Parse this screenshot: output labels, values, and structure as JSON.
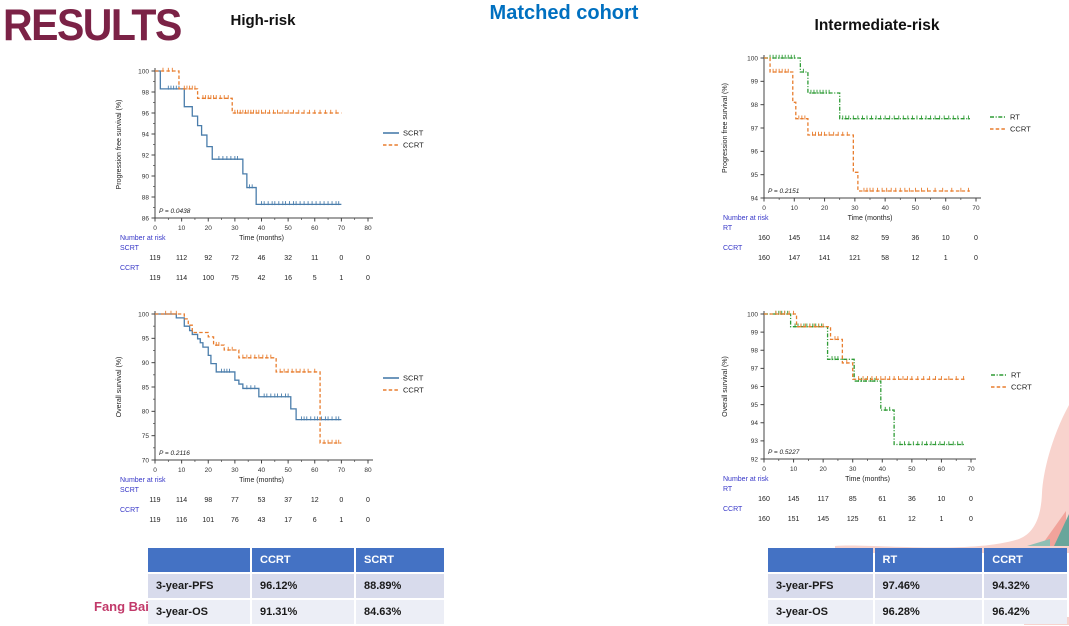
{
  "page": {
    "title": "RESULTS",
    "left_group_header": "High-risk",
    "center_header": "Matched cohort",
    "right_group_header": "Intermediate-risk",
    "author": "Fang Bai"
  },
  "colors": {
    "results_title": "#7b2246",
    "center_header": "#0070c0",
    "scrt": "#4a7dab",
    "ccrt": "#e87d2e",
    "rt": "#2e9b35",
    "risk_label_blue": "#3737c8",
    "axis": "#444444",
    "tick_text": "#333333",
    "table_header_bg": "#4472c4",
    "table_row_odd": "#d8dbec",
    "table_row_even": "#eceef6",
    "author_pink": "#c23a6a",
    "decor_pink_light": "#f8d3cd",
    "decor_pink_dark": "#f1a39b",
    "decor_teal": "#68a69b",
    "decor_teal_light": "#8fbfb4"
  },
  "chart_data": [
    {
      "type": "line",
      "id": "high-risk-pfs",
      "group": "High-risk",
      "outcome": "PFS",
      "ylabel": "Progression free survival (%)",
      "xlabel": "Time (months)",
      "ylim": [
        86,
        100
      ],
      "yticks": [
        86,
        88,
        90,
        92,
        94,
        96,
        98,
        100
      ],
      "yminor": 1,
      "xlim": [
        0,
        80
      ],
      "xticks": [
        0,
        10,
        20,
        30,
        40,
        50,
        60,
        70,
        80
      ],
      "xminor": 5,
      "pvalue": "P = 0.0438",
      "legend_position": "right",
      "grid": false,
      "series": [
        {
          "name": "SCRT",
          "color_key": "scrt",
          "dash": "solid",
          "steps": [
            [
              0,
              100
            ],
            [
              2,
              98.3
            ],
            [
              11,
              96.6
            ],
            [
              14,
              95.7
            ],
            [
              16,
              94.8
            ],
            [
              17.5,
              93.9
            ],
            [
              19.5,
              92.8
            ],
            [
              21.5,
              91.6
            ],
            [
              33,
              90.2
            ],
            [
              34.5,
              88.9
            ],
            [
              38,
              87.3
            ],
            [
              70,
              87.3
            ]
          ],
          "censors": [
            5,
            6,
            7,
            8,
            9,
            24,
            25.5,
            27,
            28.5,
            30,
            31,
            35.5,
            36.5,
            40,
            41,
            42.5,
            44,
            45,
            46.5,
            48,
            49,
            50.5,
            52,
            53,
            54.5,
            56,
            57.5,
            59,
            60.5,
            62,
            63.5,
            65,
            66.5,
            68,
            69
          ]
        },
        {
          "name": "CCRT",
          "color_key": "ccrt",
          "dash": "dashed",
          "steps": [
            [
              0,
              100
            ],
            [
              9,
              98.3
            ],
            [
              16,
              97.4
            ],
            [
              29,
              96
            ],
            [
              70,
              96
            ]
          ],
          "censors": [
            3,
            5,
            6.5,
            11,
            12,
            13,
            14,
            15,
            18,
            19,
            20,
            21,
            22,
            23,
            24.5,
            26,
            27.5,
            30,
            31,
            32,
            33,
            34,
            35,
            36,
            37,
            38,
            39,
            40,
            41.5,
            43,
            44.5,
            46,
            48,
            50,
            52,
            54,
            56,
            58,
            60,
            62,
            64,
            66,
            68
          ]
        }
      ],
      "number_at_risk": {
        "label": "Number at risk",
        "rows": [
          {
            "name": "SCRT",
            "values": [
              119,
              112,
              92,
              72,
              46,
              32,
              11,
              0,
              0
            ]
          },
          {
            "name": "CCRT",
            "values": [
              119,
              114,
              100,
              75,
              42,
              16,
              5,
              1,
              0
            ]
          }
        ]
      }
    },
    {
      "type": "line",
      "id": "high-risk-os",
      "group": "High-risk",
      "outcome": "OS",
      "ylabel": "Overall survival (%)",
      "xlabel": "Time (months)",
      "ylim": [
        70,
        100
      ],
      "yticks": [
        70,
        75,
        80,
        85,
        90,
        95,
        100
      ],
      "yminor": 2.5,
      "xlim": [
        0,
        80
      ],
      "xticks": [
        0,
        10,
        20,
        30,
        40,
        50,
        60,
        70,
        80
      ],
      "xminor": 5,
      "pvalue": "P = 0.2116",
      "legend_position": "right",
      "grid": false,
      "series": [
        {
          "name": "SCRT",
          "color_key": "scrt",
          "dash": "solid",
          "steps": [
            [
              0,
              100
            ],
            [
              8,
              99.2
            ],
            [
              11,
              97.5
            ],
            [
              13,
              96.6
            ],
            [
              14,
              95.8
            ],
            [
              16,
              94.9
            ],
            [
              17,
              94.1
            ],
            [
              18,
              93.2
            ],
            [
              20,
              91.5
            ],
            [
              21,
              89.8
            ],
            [
              23,
              88.1
            ],
            [
              30,
              86.4
            ],
            [
              31.5,
              85.6
            ],
            [
              33,
              84.7
            ],
            [
              39,
              83
            ],
            [
              51,
              80.5
            ],
            [
              53,
              78.3
            ],
            [
              70,
              78.3
            ]
          ],
          "censors": [
            25,
            26,
            27,
            28,
            34.5,
            36,
            37.5,
            41,
            42,
            43.5,
            45,
            46,
            47.5,
            49,
            50,
            55,
            56,
            57,
            58.5,
            60,
            61,
            62.5,
            64,
            65,
            66.5,
            68,
            69
          ]
        },
        {
          "name": "CCRT",
          "color_key": "ccrt",
          "dash": "dashed",
          "steps": [
            [
              0,
              100
            ],
            [
              11,
              99
            ],
            [
              12.5,
              97.7
            ],
            [
              14,
              96.2
            ],
            [
              20,
              95.3
            ],
            [
              22,
              93.6
            ],
            [
              26,
              92.6
            ],
            [
              31.5,
              91
            ],
            [
              45.5,
              88.1
            ],
            [
              62,
              73.5
            ],
            [
              70,
              73.5
            ]
          ],
          "censors": [
            4,
            6,
            8,
            23,
            24,
            27.5,
            29,
            33,
            34.5,
            36,
            37.5,
            39,
            40.5,
            42,
            43.5,
            47,
            48.5,
            50,
            51.5,
            53,
            54.5,
            56,
            57.5,
            60,
            63.5,
            65,
            66.5,
            68,
            69
          ]
        }
      ],
      "number_at_risk": {
        "label": "Number at risk",
        "rows": [
          {
            "name": "SCRT",
            "values": [
              119,
              114,
              98,
              77,
              53,
              37,
              12,
              0,
              0
            ]
          },
          {
            "name": "CCRT",
            "values": [
              119,
              116,
              101,
              76,
              43,
              17,
              6,
              1,
              0
            ]
          }
        ]
      }
    },
    {
      "type": "line",
      "id": "intermediate-risk-pfs",
      "group": "Intermediate-risk",
      "outcome": "PFS",
      "ylabel": "Progression free survival (%)",
      "xlabel": "Time (months)",
      "ylim": [
        94,
        100
      ],
      "yticks": [
        94,
        95,
        96,
        97,
        98,
        99,
        100
      ],
      "yminor": null,
      "xlim": [
        0,
        70
      ],
      "xticks": [
        0,
        10,
        20,
        30,
        40,
        50,
        60,
        70
      ],
      "xminor": 5,
      "pvalue": "P = 0.2151",
      "legend_position": "right",
      "grid": false,
      "series": [
        {
          "name": "RT",
          "color_key": "rt",
          "dash": "dashdot",
          "steps": [
            [
              0,
              100
            ],
            [
              12,
              99.4
            ],
            [
              14.5,
              98.5
            ],
            [
              25,
              97.4
            ],
            [
              68,
              97.4
            ]
          ],
          "censors": [
            2,
            3,
            4,
            5,
            6,
            7,
            8,
            9,
            10,
            13,
            15.5,
            16.5,
            17.5,
            18.5,
            19.5,
            20.5,
            21.5,
            26,
            27,
            28,
            29.5,
            31,
            32.5,
            34,
            35.5,
            37,
            38.5,
            40,
            41.5,
            43,
            44.5,
            46,
            47.5,
            49,
            50.5,
            52,
            53.5,
            55,
            56.5,
            58,
            59.5,
            61,
            62.5,
            64,
            66,
            67.5
          ]
        },
        {
          "name": "CCRT",
          "color_key": "ccrt",
          "dash": "dashed",
          "steps": [
            [
              0,
              100
            ],
            [
              2,
              99.4
            ],
            [
              9.5,
              98.1
            ],
            [
              10.5,
              97.4
            ],
            [
              14.5,
              96.7
            ],
            [
              29.5,
              95.1
            ],
            [
              31,
              94.3
            ],
            [
              68,
              94.3
            ]
          ],
          "censors": [
            3,
            4,
            5,
            6,
            7,
            8,
            11.5,
            12.5,
            13.5,
            16,
            17,
            18,
            19,
            20,
            21.5,
            23,
            24.5,
            26,
            27.5,
            33,
            34,
            35,
            36,
            37.5,
            39,
            40.5,
            42,
            43.5,
            45,
            46.5,
            48,
            50,
            52,
            54,
            56.5,
            59,
            62,
            65,
            67.5
          ]
        }
      ],
      "number_at_risk": {
        "label": "Number at risk",
        "rows": [
          {
            "name": "RT",
            "values": [
              160,
              145,
              114,
              82,
              59,
              36,
              10,
              0
            ]
          },
          {
            "name": "CCRT",
            "values": [
              160,
              147,
              141,
              121,
              58,
              12,
              1,
              0
            ]
          }
        ]
      }
    },
    {
      "type": "line",
      "id": "intermediate-risk-os",
      "group": "Intermediate-risk",
      "outcome": "OS",
      "ylabel": "Overall survival (%)",
      "xlabel": "Time (months)",
      "ylim": [
        92,
        100
      ],
      "yticks": [
        92,
        93,
        94,
        95,
        96,
        97,
        98,
        99,
        100
      ],
      "yminor": null,
      "xlim": [
        0,
        70
      ],
      "xticks": [
        0,
        10,
        20,
        30,
        40,
        50,
        60,
        70
      ],
      "xminor": 5,
      "pvalue": "P = 0.5227",
      "legend_position": "right",
      "grid": false,
      "series": [
        {
          "name": "RT",
          "color_key": "rt",
          "dash": "dashdot",
          "steps": [
            [
              0,
              100
            ],
            [
              9,
              99.3
            ],
            [
              21.5,
              97.5
            ],
            [
              30.5,
              96.3
            ],
            [
              39.5,
              94.7
            ],
            [
              44,
              92.8
            ],
            [
              68,
              92.8
            ]
          ],
          "censors": [
            4,
            5,
            6,
            7,
            8,
            10.5,
            11.5,
            12.5,
            13.5,
            14.5,
            15.5,
            16.5,
            17.5,
            18.5,
            19.5,
            23,
            24,
            25,
            26.5,
            32,
            33,
            34.5,
            36,
            37.5,
            41,
            42.5,
            46,
            47.5,
            49,
            50.5,
            52,
            53.5,
            55,
            56.5,
            58,
            59.5,
            61,
            62.5,
            64,
            65.5,
            67
          ]
        },
        {
          "name": "CCRT",
          "color_key": "ccrt",
          "dash": "dashed",
          "steps": [
            [
              0,
              100
            ],
            [
              11,
              99.3
            ],
            [
              22.5,
              98.6
            ],
            [
              26.5,
              97.3
            ],
            [
              30,
              96.4
            ],
            [
              68,
              96.4
            ]
          ],
          "censors": [
            4,
            5.5,
            7,
            8.5,
            10,
            12.5,
            14,
            15.5,
            17,
            18.5,
            20,
            24,
            25,
            28,
            32,
            33.5,
            35,
            36.5,
            38,
            39.5,
            41,
            42.5,
            44,
            45.5,
            47,
            48.5,
            50,
            52,
            54,
            56,
            58,
            60,
            62.5,
            65,
            67.5
          ]
        }
      ],
      "number_at_risk": {
        "label": "Number at risk",
        "rows": [
          {
            "name": "RT",
            "values": [
              160,
              145,
              117,
              85,
              61,
              36,
              10,
              0
            ]
          },
          {
            "name": "CCRT",
            "values": [
              160,
              151,
              145,
              125,
              61,
              12,
              1,
              0
            ]
          }
        ]
      }
    }
  ],
  "tables": [
    {
      "id": "high-risk-summary",
      "headers": [
        "",
        "CCRT",
        "SCRT"
      ],
      "rows": [
        [
          "3-year-PFS",
          "96.12%",
          "88.89%"
        ],
        [
          "3-year-OS",
          "91.31%",
          "84.63%"
        ]
      ]
    },
    {
      "id": "intermediate-risk-summary",
      "headers": [
        "",
        "RT",
        "CCRT"
      ],
      "rows": [
        [
          "3-year-PFS",
          "97.46%",
          "94.32%"
        ],
        [
          "3-year-OS",
          "96.28%",
          "96.42%"
        ]
      ]
    }
  ]
}
